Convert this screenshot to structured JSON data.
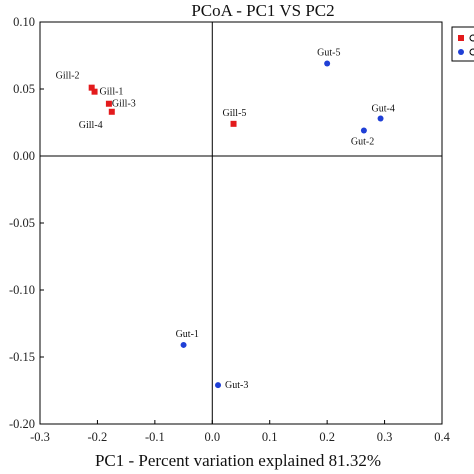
{
  "chart_data": {
    "type": "scatter",
    "title": "PCoA - PC1 VS PC2",
    "xlabel": "PC1 - Percent variation explained 81.32%",
    "ylabel": "",
    "xlim": [
      -0.3,
      0.4
    ],
    "ylim": [
      -0.2,
      0.1
    ],
    "x_ticks": [
      "-0.3",
      "-0.2",
      "-0.1",
      "0.0",
      "0.1",
      "0.2",
      "0.3",
      "0.4"
    ],
    "y_ticks": [
      "0.10",
      "0.05",
      "0.00",
      "-0.05",
      "-0.10",
      "-0.15",
      "-0.20"
    ],
    "reference_lines": {
      "x": 0,
      "y": 0
    },
    "grid": false,
    "series": [
      {
        "marker": "square",
        "color": "#e31a1c",
        "points": [
          {
            "label": "Gill-1",
            "x": -0.205,
            "y": 0.048
          },
          {
            "label": "Gill-2",
            "x": -0.21,
            "y": 0.051
          },
          {
            "label": "Gill-3",
            "x": -0.18,
            "y": 0.039
          },
          {
            "label": "Gill-4",
            "x": -0.175,
            "y": 0.033
          },
          {
            "label": "Gill-5",
            "x": 0.037,
            "y": 0.024
          }
        ]
      },
      {
        "marker": "circle",
        "color": "#1f3fd6",
        "points": [
          {
            "label": "Gut-1",
            "x": -0.05,
            "y": -0.141
          },
          {
            "label": "Gut-2",
            "x": 0.264,
            "y": 0.019
          },
          {
            "label": "Gut-3",
            "x": 0.01,
            "y": -0.171
          },
          {
            "label": "Gut-4",
            "x": 0.293,
            "y": 0.028
          },
          {
            "label": "Gut-5",
            "x": 0.2,
            "y": 0.069
          }
        ]
      }
    ],
    "legend": {
      "placement": "top-right, clipped at the image edge",
      "entries": [
        {
          "marker": "square",
          "color": "#e31a1c"
        },
        {
          "marker": "circle",
          "color": "#1f3fd6"
        }
      ]
    }
  }
}
